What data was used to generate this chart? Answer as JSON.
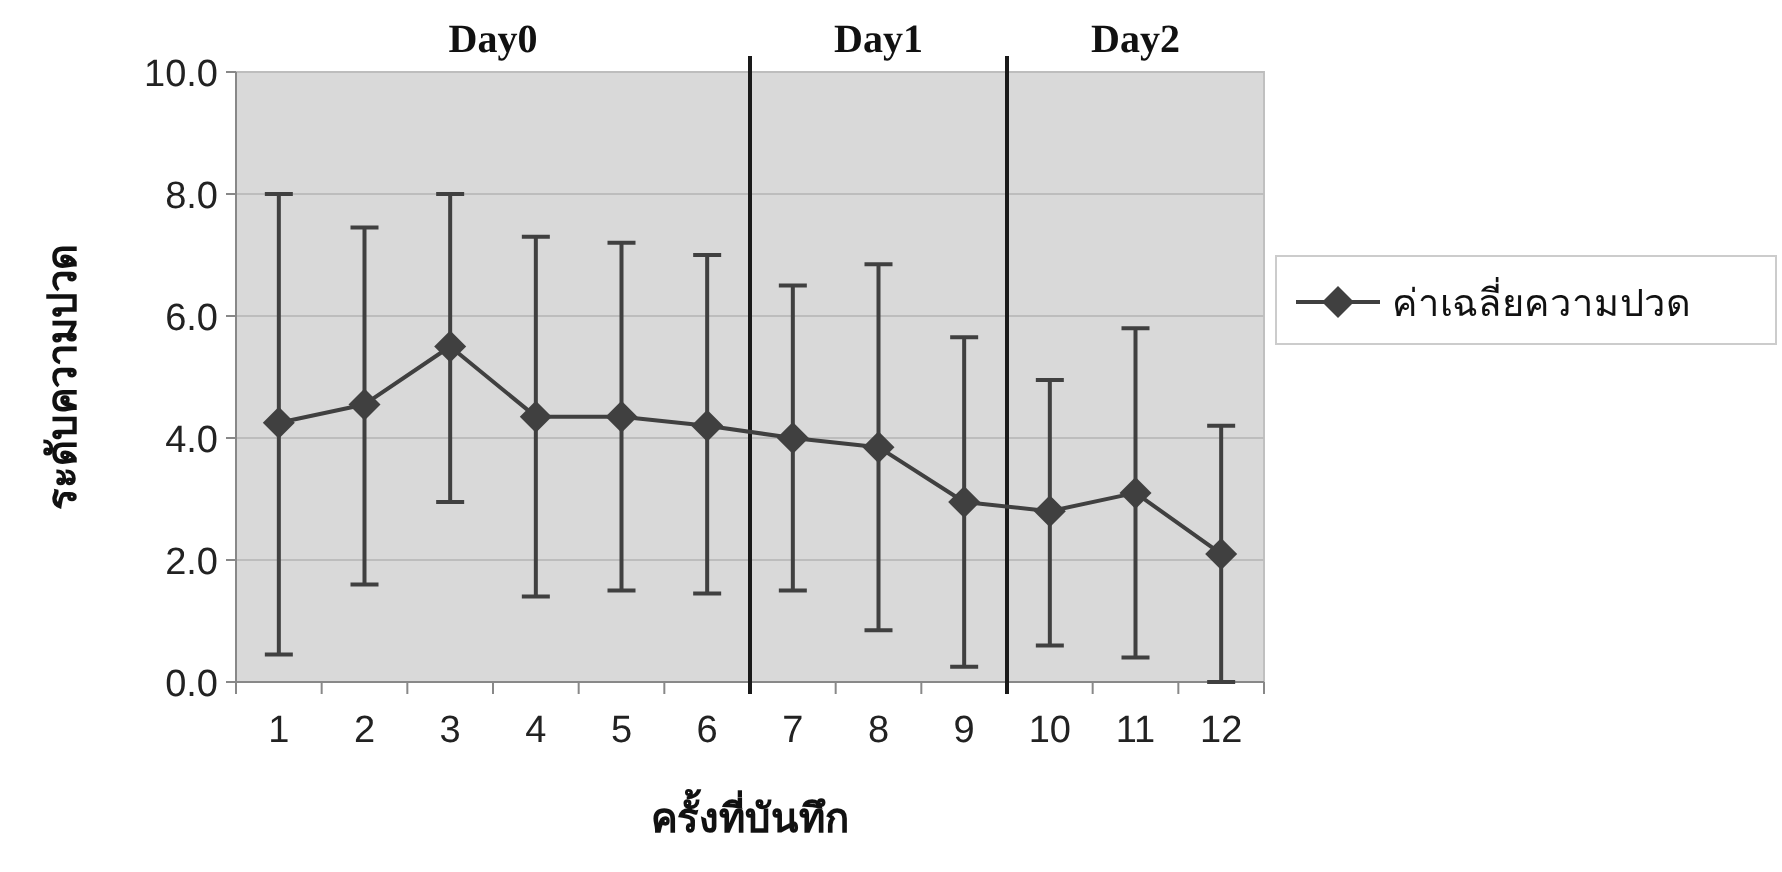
{
  "chart_data": {
    "type": "line",
    "xlabel": "ครั้งที่บันทึก",
    "ylabel": "ระดับความปวด",
    "x": [
      1,
      2,
      3,
      4,
      5,
      6,
      7,
      8,
      9,
      10,
      11,
      12
    ],
    "xlim": [
      0.5,
      12.5
    ],
    "xticks": [
      1,
      2,
      3,
      4,
      5,
      6,
      7,
      8,
      9,
      10,
      11,
      12
    ],
    "ylim": [
      0,
      10
    ],
    "yticks": [
      {
        "value": 0,
        "label": "0.0"
      },
      {
        "value": 2,
        "label": "2.0"
      },
      {
        "value": 4,
        "label": "4.0"
      },
      {
        "value": 6,
        "label": "6.0"
      },
      {
        "value": 8,
        "label": "8.0"
      },
      {
        "value": 10,
        "label": "10.0"
      }
    ],
    "series": [
      {
        "name": "ค่าเฉลี่ยความปวด",
        "color": "#404040",
        "values": [
          4.25,
          4.55,
          5.5,
          4.35,
          4.35,
          4.2,
          4.0,
          3.85,
          2.95,
          2.8,
          3.1,
          2.1
        ],
        "errors": [
          [
            0.45,
            8.0
          ],
          [
            1.6,
            7.45
          ],
          [
            2.95,
            8.0
          ],
          [
            1.4,
            7.3
          ],
          [
            1.5,
            7.2
          ],
          [
            1.45,
            7.0
          ],
          [
            1.5,
            6.5
          ],
          [
            0.85,
            6.85
          ],
          [
            0.25,
            5.65
          ],
          [
            0.6,
            4.95
          ],
          [
            0.4,
            5.8
          ],
          [
            0.0,
            4.2
          ]
        ]
      }
    ],
    "ref_lines": [
      {
        "axis": "x",
        "value": 6.5,
        "color": "#1a1a1a"
      },
      {
        "axis": "x",
        "value": 9.5,
        "color": "#1a1a1a"
      }
    ],
    "annotations": [
      "Day0",
      "Day1",
      "Day2"
    ],
    "grid": "y",
    "legend": "right",
    "marker": "diamond",
    "line_style": "solid"
  }
}
